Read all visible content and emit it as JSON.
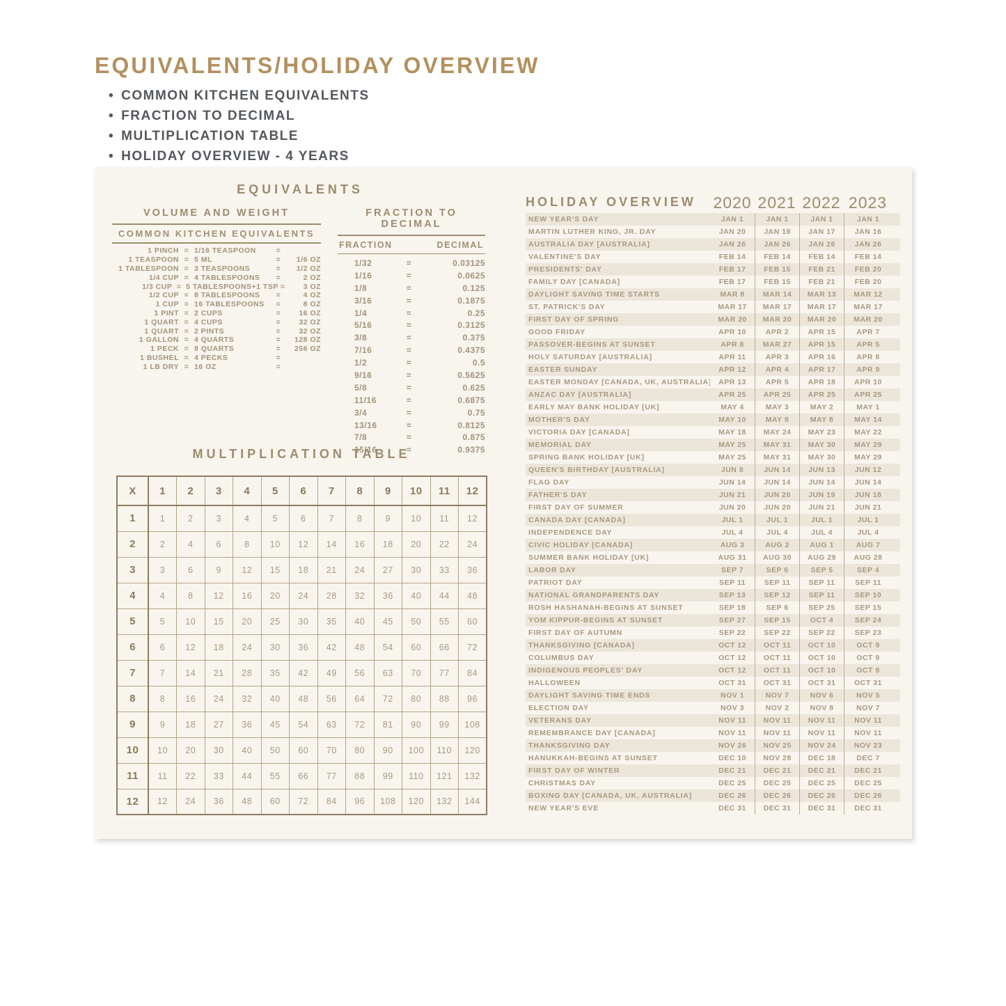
{
  "colors": {
    "title_gold": "#b3905e",
    "bullet_gray": "#54585c",
    "tan_heading": "#9c8b6d",
    "tan_text": "#a89880",
    "stripe": "#ece6da",
    "card_bg": "#f8f5ee",
    "border_dark": "#8d7c60",
    "border_light": "#b3a487"
  },
  "page_header": {
    "title": "EQUIVALENTS/HOLIDAY OVERVIEW",
    "bullets": [
      "COMMON KITCHEN EQUIVALENTS",
      "FRACTION TO DECIMAL",
      "MULTIPLICATION TABLE",
      "HOLIDAY OVERVIEW - 4 YEARS"
    ]
  },
  "equivalents": {
    "title": "EQUIVALENTS",
    "eq_symbol": "=",
    "volume_weight": {
      "title": "VOLUME AND WEIGHT",
      "subtitle": "COMMON KITCHEN EQUIVALENTS",
      "rows": [
        {
          "left": "1 PINCH",
          "mid": "1/16 TEASPOON",
          "oz": ""
        },
        {
          "left": "1 TEASPOON",
          "mid": "5 ML",
          "oz": "1/6 OZ"
        },
        {
          "left": "1 TABLESPOON",
          "mid": "3 TEASPOONS",
          "oz": "1/2 OZ"
        },
        {
          "left": "1/4 CUP",
          "mid": "4 TABLESPOONS",
          "oz": "2 OZ"
        },
        {
          "left": "1/3 CUP",
          "mid": "5 TABLESPOONS+1 TSP",
          "oz": "3 OZ"
        },
        {
          "left": "1/2 CUP",
          "mid": "8 TABLESPOONS",
          "oz": "4 OZ"
        },
        {
          "left": "1 CUP",
          "mid": "16 TABLESPOONS",
          "oz": "8 OZ"
        },
        {
          "left": "1 PINT",
          "mid": "2 CUPS",
          "oz": "16 OZ"
        },
        {
          "left": "1 QUART",
          "mid": "4 CUPS",
          "oz": "32 OZ"
        },
        {
          "left": "1 QUART",
          "mid": "2 PINTS",
          "oz": "32 OZ"
        },
        {
          "left": "1 GALLON",
          "mid": "4 QUARTS",
          "oz": "128 OZ"
        },
        {
          "left": "1 PECK",
          "mid": "8 QUARTS",
          "oz": "256 OZ"
        },
        {
          "left": "1 BUSHEL",
          "mid": "4 PECKS",
          "oz": ""
        },
        {
          "left": "1 LB DRY",
          "mid": "16 OZ",
          "oz": ""
        }
      ]
    },
    "fraction_decimal": {
      "title": "FRACTION TO DECIMAL",
      "col_fraction": "FRACTION",
      "col_decimal": "DECIMAL",
      "rows": [
        {
          "fraction": "1/32",
          "decimal": "0.03125"
        },
        {
          "fraction": "1/16",
          "decimal": "0.0625"
        },
        {
          "fraction": "1/8",
          "decimal": "0.125"
        },
        {
          "fraction": "3/16",
          "decimal": "0.1875"
        },
        {
          "fraction": "1/4",
          "decimal": "0.25"
        },
        {
          "fraction": "5/16",
          "decimal": "0.3125"
        },
        {
          "fraction": "3/8",
          "decimal": "0.375"
        },
        {
          "fraction": "7/16",
          "decimal": "0.4375"
        },
        {
          "fraction": "1/2",
          "decimal": "0.5"
        },
        {
          "fraction": "9/16",
          "decimal": "0.5625"
        },
        {
          "fraction": "5/8",
          "decimal": "0.625"
        },
        {
          "fraction": "11/16",
          "decimal": "0.6875"
        },
        {
          "fraction": "3/4",
          "decimal": "0.75"
        },
        {
          "fraction": "13/16",
          "decimal": "0.8125"
        },
        {
          "fraction": "7/8",
          "decimal": "0.875"
        },
        {
          "fraction": "15/16",
          "decimal": "0.9375"
        }
      ]
    }
  },
  "multiplication": {
    "title": "MULTIPLICATION TABLE",
    "corner": "X",
    "headers": [
      "1",
      "2",
      "3",
      "4",
      "5",
      "6",
      "7",
      "8",
      "9",
      "10",
      "11",
      "12"
    ],
    "row_headers": [
      "1",
      "2",
      "3",
      "4",
      "5",
      "6",
      "7",
      "8",
      "9",
      "10",
      "11",
      "12"
    ],
    "values": [
      [
        1,
        2,
        3,
        4,
        5,
        6,
        7,
        8,
        9,
        10,
        11,
        12
      ],
      [
        2,
        4,
        6,
        8,
        10,
        12,
        14,
        16,
        18,
        20,
        22,
        24
      ],
      [
        3,
        6,
        9,
        12,
        15,
        18,
        21,
        24,
        27,
        30,
        33,
        36
      ],
      [
        4,
        8,
        12,
        16,
        20,
        24,
        28,
        32,
        36,
        40,
        44,
        48
      ],
      [
        5,
        10,
        15,
        20,
        25,
        30,
        35,
        40,
        45,
        50,
        55,
        60
      ],
      [
        6,
        12,
        18,
        24,
        30,
        36,
        42,
        48,
        54,
        60,
        66,
        72
      ],
      [
        7,
        14,
        21,
        28,
        35,
        42,
        49,
        56,
        63,
        70,
        77,
        84
      ],
      [
        8,
        16,
        24,
        32,
        40,
        48,
        56,
        64,
        72,
        80,
        88,
        96
      ],
      [
        9,
        18,
        27,
        36,
        45,
        54,
        63,
        72,
        81,
        90,
        99,
        108
      ],
      [
        10,
        20,
        30,
        40,
        50,
        60,
        70,
        80,
        90,
        100,
        110,
        120
      ],
      [
        11,
        22,
        33,
        44,
        55,
        66,
        77,
        88,
        99,
        110,
        121,
        132
      ],
      [
        12,
        24,
        36,
        48,
        60,
        72,
        84,
        96,
        108,
        120,
        132,
        144
      ]
    ]
  },
  "holiday_overview": {
    "title": "HOLIDAY OVERVIEW",
    "years": [
      "2020",
      "2021",
      "2022",
      "2023"
    ],
    "rows": [
      {
        "name": "NEW YEAR'S DAY",
        "dates": [
          "JAN 1",
          "JAN 1",
          "JAN 1",
          "JAN 1"
        ]
      },
      {
        "name": "MARTIN LUTHER KING, JR. DAY",
        "dates": [
          "JAN 20",
          "JAN 18",
          "JAN 17",
          "JAN 16"
        ]
      },
      {
        "name": "AUSTRALIA DAY [AUSTRALIA]",
        "dates": [
          "JAN 26",
          "JAN 26",
          "JAN 26",
          "JAN 26"
        ]
      },
      {
        "name": "VALENTINE'S DAY",
        "dates": [
          "FEB 14",
          "FEB 14",
          "FEB 14",
          "FEB 14"
        ]
      },
      {
        "name": "PRESIDENTS' DAY",
        "dates": [
          "FEB 17",
          "FEB 15",
          "FEB 21",
          "FEB 20"
        ]
      },
      {
        "name": "FAMILY DAY [CANADA]",
        "dates": [
          "FEB 17",
          "FEB 15",
          "FEB 21",
          "FEB 20"
        ]
      },
      {
        "name": "DAYLIGHT SAVING TIME STARTS",
        "dates": [
          "MAR 8",
          "MAR 14",
          "MAR 13",
          "MAR 12"
        ]
      },
      {
        "name": "ST. PATRICK'S DAY",
        "dates": [
          "MAR 17",
          "MAR 17",
          "MAR 17",
          "MAR 17"
        ]
      },
      {
        "name": "FIRST DAY OF SPRING",
        "dates": [
          "MAR 20",
          "MAR 20",
          "MAR 20",
          "MAR 20"
        ]
      },
      {
        "name": "GOOD FRIDAY",
        "dates": [
          "APR 10",
          "APR 2",
          "APR 15",
          "APR 7"
        ]
      },
      {
        "name": "PASSOVER-BEGINS AT SUNSET",
        "dates": [
          "APR 8",
          "MAR 27",
          "APR 15",
          "APR 5"
        ]
      },
      {
        "name": "HOLY SATURDAY [AUSTRALIA]",
        "dates": [
          "APR 11",
          "APR 3",
          "APR 16",
          "APR 8"
        ]
      },
      {
        "name": "EASTER SUNDAY",
        "dates": [
          "APR 12",
          "APR 4",
          "APR 17",
          "APR 9"
        ]
      },
      {
        "name": "EASTER MONDAY [CANADA, UK, AUSTRALIA]",
        "dates": [
          "APR 13",
          "APR 5",
          "APR 18",
          "APR 10"
        ]
      },
      {
        "name": "ANZAC DAY [AUSTRALIA]",
        "dates": [
          "APR 25",
          "APR 25",
          "APR 25",
          "APR 25"
        ]
      },
      {
        "name": "EARLY MAY BANK HOLIDAY [UK]",
        "dates": [
          "MAY 4",
          "MAY 3",
          "MAY 2",
          "MAY 1"
        ]
      },
      {
        "name": "MOTHER'S DAY",
        "dates": [
          "MAY 10",
          "MAY 9",
          "MAY 8",
          "MAY 14"
        ]
      },
      {
        "name": "VICTORIA DAY [CANADA]",
        "dates": [
          "MAY 18",
          "MAY 24",
          "MAY 23",
          "MAY 22"
        ]
      },
      {
        "name": "MEMORIAL DAY",
        "dates": [
          "MAY 25",
          "MAY 31",
          "MAY 30",
          "MAY 29"
        ]
      },
      {
        "name": "SPRING BANK HOLIDAY [UK]",
        "dates": [
          "MAY 25",
          "MAY 31",
          "MAY 30",
          "MAY 29"
        ]
      },
      {
        "name": "QUEEN'S BIRTHDAY [AUSTRALIA]",
        "dates": [
          "JUN 8",
          "JUN 14",
          "JUN 13",
          "JUN 12"
        ]
      },
      {
        "name": "FLAG DAY",
        "dates": [
          "JUN 14",
          "JUN 14",
          "JUN 14",
          "JUN 14"
        ]
      },
      {
        "name": "FATHER'S DAY",
        "dates": [
          "JUN 21",
          "JUN 20",
          "JUN 19",
          "JUN 18"
        ]
      },
      {
        "name": "FIRST DAY OF SUMMER",
        "dates": [
          "JUN 20",
          "JUN 20",
          "JUN 21",
          "JUN 21"
        ]
      },
      {
        "name": "CANADA DAY [CANADA]",
        "dates": [
          "JUL 1",
          "JUL 1",
          "JUL 1",
          "JUL 1"
        ]
      },
      {
        "name": "INDEPENDENCE DAY",
        "dates": [
          "JUL 4",
          "JUL 4",
          "JUL 4",
          "JUL 4"
        ]
      },
      {
        "name": "CIVIC HOLIDAY [CANADA]",
        "dates": [
          "AUG 3",
          "AUG 2",
          "AUG 1",
          "AUG 7"
        ]
      },
      {
        "name": "SUMMER BANK HOLIDAY [UK]",
        "dates": [
          "AUG 31",
          "AUG 30",
          "AUG 29",
          "AUG 28"
        ]
      },
      {
        "name": "LABOR DAY",
        "dates": [
          "SEP 7",
          "SEP 6",
          "SEP 5",
          "SEP 4"
        ]
      },
      {
        "name": "PATRIOT DAY",
        "dates": [
          "SEP 11",
          "SEP 11",
          "SEP 11",
          "SEP 11"
        ]
      },
      {
        "name": "NATIONAL GRANDPARENTS DAY",
        "dates": [
          "SEP 13",
          "SEP 12",
          "SEP 11",
          "SEP 10"
        ]
      },
      {
        "name": "ROSH HASHANAH-BEGINS AT SUNSET",
        "dates": [
          "SEP 18",
          "SEP 6",
          "SEP 25",
          "SEP 15"
        ]
      },
      {
        "name": "YOM KIPPUR-BEGINS AT SUNSET",
        "dates": [
          "SEP 27",
          "SEP 15",
          "OCT 4",
          "SEP 24"
        ]
      },
      {
        "name": "FIRST DAY OF AUTUMN",
        "dates": [
          "SEP 22",
          "SEP 22",
          "SEP 22",
          "SEP 23"
        ]
      },
      {
        "name": "THANKSGIVING [CANADA]",
        "dates": [
          "OCT 12",
          "OCT 11",
          "OCT 10",
          "OCT 9"
        ]
      },
      {
        "name": "COLUMBUS DAY",
        "dates": [
          "OCT 12",
          "OCT 11",
          "OCT 10",
          "OCT 9"
        ]
      },
      {
        "name": "INDIGENOUS PEOPLES' DAY",
        "dates": [
          "OCT 12",
          "OCT 11",
          "OCT 10",
          "OCT 9"
        ]
      },
      {
        "name": "HALLOWEEN",
        "dates": [
          "OCT 31",
          "OCT 31",
          "OCT 31",
          "OCT 31"
        ]
      },
      {
        "name": "DAYLIGHT SAVING TIME ENDS",
        "dates": [
          "NOV 1",
          "NOV 7",
          "NOV 6",
          "NOV 5"
        ]
      },
      {
        "name": "ELECTION DAY",
        "dates": [
          "NOV 3",
          "NOV 2",
          "NOV 8",
          "NOV 7"
        ]
      },
      {
        "name": "VETERANS DAY",
        "dates": [
          "NOV 11",
          "NOV 11",
          "NOV 11",
          "NOV 11"
        ]
      },
      {
        "name": "REMEMBRANCE DAY [CANADA]",
        "dates": [
          "NOV 11",
          "NOV 11",
          "NOV 11",
          "NOV 11"
        ]
      },
      {
        "name": "THANKSGIVING DAY",
        "dates": [
          "NOV 26",
          "NOV 25",
          "NOV 24",
          "NOV 23"
        ]
      },
      {
        "name": "HANUKKAH-BEGINS AT SUNSET",
        "dates": [
          "DEC 10",
          "NOV 28",
          "DEC 18",
          "DEC 7"
        ]
      },
      {
        "name": "FIRST DAY OF WINTER",
        "dates": [
          "DEC 21",
          "DEC 21",
          "DEC 21",
          "DEC 21"
        ]
      },
      {
        "name": "CHRISTMAS DAY",
        "dates": [
          "DEC 25",
          "DEC 25",
          "DEC 25",
          "DEC 25"
        ]
      },
      {
        "name": "BOXING DAY [CANADA, UK, AUSTRALIA]",
        "dates": [
          "DEC 26",
          "DEC 26",
          "DEC 26",
          "DEC 26"
        ]
      },
      {
        "name": "NEW YEAR'S EVE",
        "dates": [
          "DEC 31",
          "DEC 31",
          "DEC 31",
          "DEC 31"
        ]
      }
    ]
  }
}
